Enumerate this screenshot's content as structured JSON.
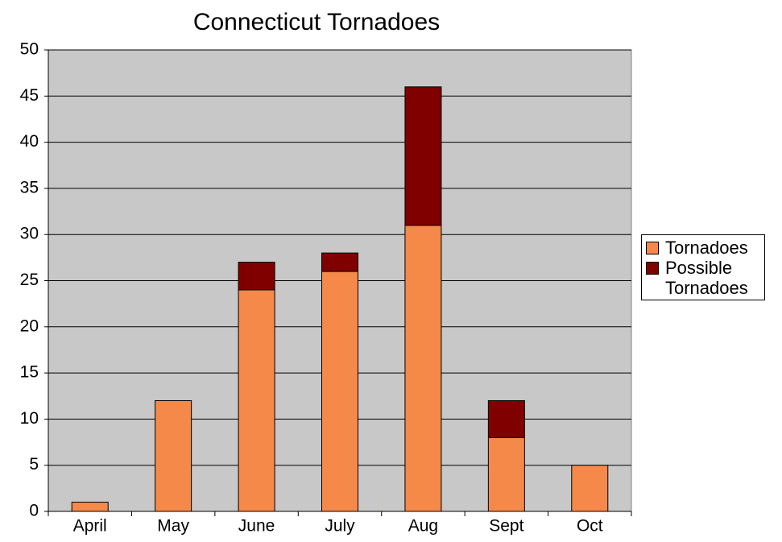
{
  "chart_data": {
    "type": "stacked_bar",
    "title": "Connecticut Tornadoes",
    "categories": [
      "April",
      "May",
      "June",
      "July",
      "Aug",
      "Sept",
      "Oct"
    ],
    "series": [
      {
        "name": "Tornadoes",
        "color": "#f4894a",
        "values": [
          1,
          12,
          24,
          26,
          31,
          8,
          5
        ]
      },
      {
        "name": "Possible Tornadoes",
        "color": "#800000",
        "values": [
          0,
          0,
          3,
          2,
          15,
          4,
          0
        ]
      }
    ],
    "ylim": [
      0,
      50
    ],
    "yticks": [
      0,
      5,
      10,
      15,
      20,
      25,
      30,
      35,
      40,
      45,
      50
    ],
    "grid": true,
    "legend": "right"
  }
}
